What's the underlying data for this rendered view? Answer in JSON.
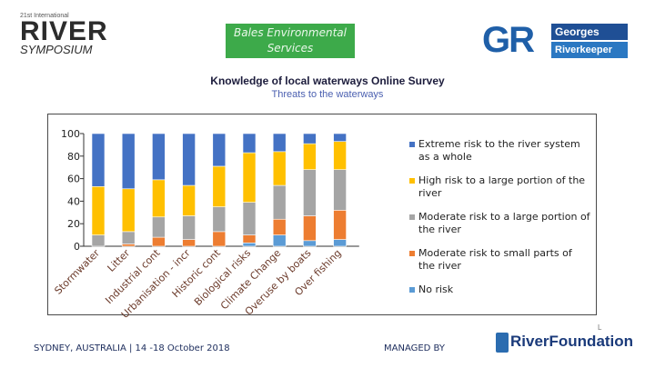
{
  "header": {
    "symposium": {
      "small": "21st International",
      "big": "RIVER",
      "sub": "SYMPOSIUM"
    },
    "bales_logo": [
      "Bales Environmental",
      "Services"
    ],
    "georges": {
      "letters": "GR",
      "line1": "Georges",
      "line2": "Riverkeeper"
    }
  },
  "survey_title": "Knowledge of local waterways Online Survey",
  "chart_data": {
    "type": "bar",
    "stacked": true,
    "title": "Threats to the waterways",
    "xlabel": "",
    "ylabel": "",
    "ylim": [
      0,
      100
    ],
    "yticks": [
      0,
      20,
      40,
      60,
      80,
      100
    ],
    "categories": [
      "Stormwater",
      "Litter",
      "Industrial cont",
      "Urbanisation - incr",
      "Historic cont",
      "Biological risks",
      "Climate Change",
      "Overuse by boats",
      "Over fishing"
    ],
    "series": [
      {
        "name": "No risk",
        "color": "#5b9bd5",
        "values": [
          0,
          0,
          0,
          0,
          0,
          3,
          10,
          5,
          6
        ]
      },
      {
        "name": "Moderate risk to small parts of the river",
        "color": "#ed7d31",
        "values": [
          0,
          2,
          8,
          6,
          13,
          7,
          14,
          22,
          26
        ]
      },
      {
        "name": "Moderate risk to a large portion of the river",
        "color": "#a5a5a5",
        "values": [
          10,
          11,
          18,
          21,
          22,
          29,
          30,
          41,
          36
        ]
      },
      {
        "name": "High risk to a large portion of the river",
        "color": "#ffc000",
        "values": [
          43,
          38,
          33,
          27,
          36,
          44,
          30,
          23,
          25
        ]
      },
      {
        "name": "Extreme risk to the river system as a whole",
        "color": "#4472c4",
        "values": [
          47,
          49,
          41,
          46,
          29,
          17,
          16,
          9,
          7
        ]
      }
    ],
    "legend": [
      "Extreme risk to the river system as a whole",
      "High risk  to a large portion of the river",
      "Moderate risk to a large portion of the river",
      "Moderate risk to small parts of the river",
      "No risk"
    ],
    "legend_colors": [
      "#4472c4",
      "#ffc000",
      "#a5a5a5",
      "#ed7d31",
      "#5b9bd5"
    ],
    "legend_position": "right",
    "grid": false
  },
  "footer": {
    "event": "SYDNEY, AUSTRALIA | 14 -18 October 2018",
    "managed_by": "MANAGED BY",
    "foundation": "RiverFoundation",
    "foundation_prefix": "L"
  }
}
